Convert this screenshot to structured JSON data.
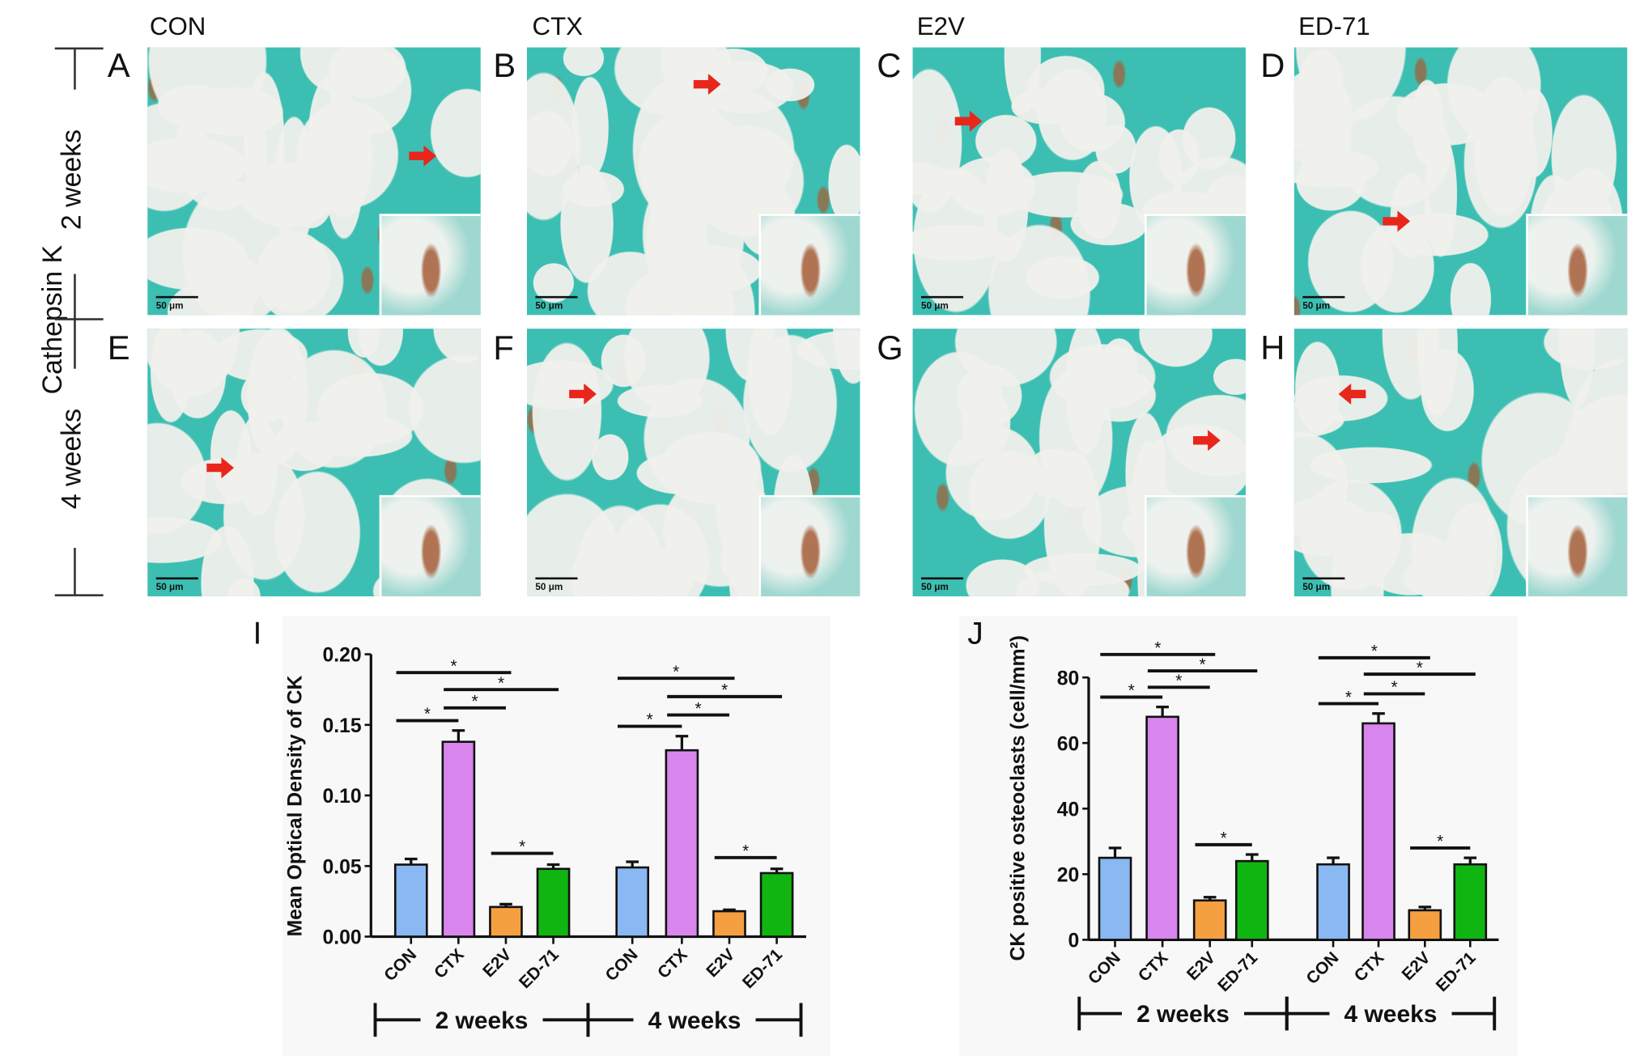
{
  "figure": {
    "columns": [
      "CON",
      "CTX",
      "E2V",
      "ED-71"
    ],
    "row_side_label": "Cathepsin K",
    "rows": [
      "2 weeks",
      "4 weeks"
    ],
    "panel_letters": [
      "A",
      "B",
      "C",
      "D",
      "E",
      "F",
      "G",
      "H"
    ],
    "scale_bar_label": "50 μm",
    "arrow_color": "#e8261c"
  },
  "chart_data": [
    {
      "panel_letter": "I",
      "type": "bar",
      "title": "",
      "ylabel": "Mean Optical Density of CK",
      "xlabel": "",
      "ylim": [
        0,
        0.2
      ],
      "yticks": [
        "0.00",
        "0.05",
        "0.10",
        "0.15",
        "0.20"
      ],
      "ytick_values": [
        0,
        0.05,
        0.1,
        0.15,
        0.2
      ],
      "categories": [
        "CON",
        "CTX",
        "E2V",
        "ED-71"
      ],
      "groups": [
        "2 weeks",
        "4 weeks"
      ],
      "colors": [
        "#8ab8f2",
        "#d985ee",
        "#f5a040",
        "#11b511"
      ],
      "series": [
        {
          "name": "2 weeks",
          "values": [
            0.051,
            0.138,
            0.021,
            0.048
          ],
          "errors": [
            0.004,
            0.008,
            0.002,
            0.003
          ]
        },
        {
          "name": "4 weeks",
          "values": [
            0.049,
            0.132,
            0.018,
            0.045
          ],
          "errors": [
            0.004,
            0.01,
            0.001,
            0.003
          ]
        }
      ],
      "significance_label": "*",
      "significance": [
        [
          {
            "from": 0,
            "to": 2,
            "y": 0.187
          },
          {
            "from": 1,
            "to": 3,
            "y": 0.175
          },
          {
            "from": 1,
            "to": 2,
            "y": 0.162
          },
          {
            "from": 0,
            "to": 1,
            "y": 0.153
          },
          {
            "from": 2,
            "to": 3,
            "y": 0.059
          }
        ],
        [
          {
            "from": 0,
            "to": 2,
            "y": 0.183
          },
          {
            "from": 1,
            "to": 3,
            "y": 0.17
          },
          {
            "from": 1,
            "to": 2,
            "y": 0.157
          },
          {
            "from": 0,
            "to": 1,
            "y": 0.149
          },
          {
            "from": 2,
            "to": 3,
            "y": 0.056
          }
        ]
      ]
    },
    {
      "panel_letter": "J",
      "type": "bar",
      "title": "",
      "ylabel": "CK positive osteoclasts (cell/mm²)",
      "xlabel": "",
      "ylim": [
        0,
        80
      ],
      "yticks": [
        "0",
        "20",
        "40",
        "60",
        "80"
      ],
      "ytick_values": [
        0,
        20,
        40,
        60,
        80
      ],
      "categories": [
        "CON",
        "CTX",
        "E2V",
        "ED-71"
      ],
      "groups": [
        "2 weeks",
        "4 weeks"
      ],
      "colors": [
        "#8ab8f2",
        "#d985ee",
        "#f5a040",
        "#11b511"
      ],
      "series": [
        {
          "name": "2 weeks",
          "values": [
            25,
            68,
            12,
            24
          ],
          "errors": [
            3,
            3,
            1,
            2
          ]
        },
        {
          "name": "4 weeks",
          "values": [
            23,
            66,
            9,
            23
          ],
          "errors": [
            2,
            3,
            1,
            2
          ]
        }
      ],
      "significance_label": "*",
      "significance": [
        [
          {
            "from": 0,
            "to": 2,
            "y": 87
          },
          {
            "from": 1,
            "to": 3,
            "y": 82
          },
          {
            "from": 1,
            "to": 2,
            "y": 77
          },
          {
            "from": 0,
            "to": 1,
            "y": 74
          },
          {
            "from": 2,
            "to": 3,
            "y": 29
          }
        ],
        [
          {
            "from": 0,
            "to": 2,
            "y": 86
          },
          {
            "from": 1,
            "to": 3,
            "y": 81
          },
          {
            "from": 1,
            "to": 2,
            "y": 75
          },
          {
            "from": 0,
            "to": 1,
            "y": 72
          },
          {
            "from": 2,
            "to": 3,
            "y": 28
          }
        ]
      ]
    }
  ]
}
